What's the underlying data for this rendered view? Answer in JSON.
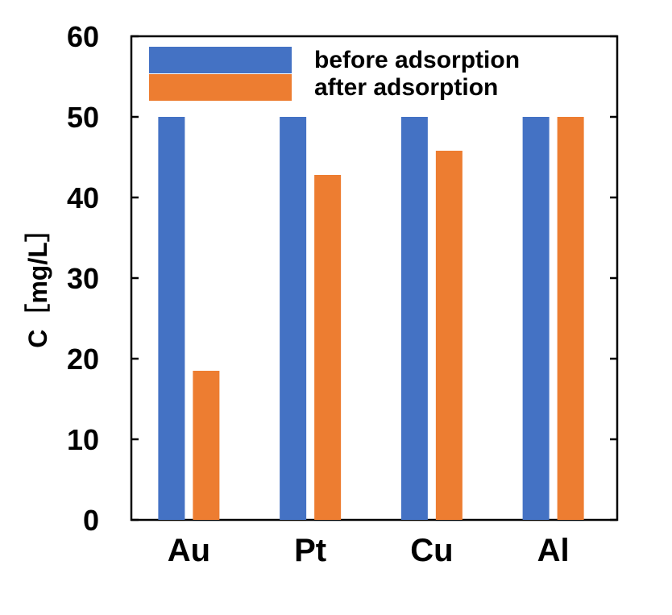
{
  "chart_data": {
    "type": "bar",
    "categories": [
      "Au",
      "Pt",
      "Cu",
      "Al"
    ],
    "series": [
      {
        "name": "before adsorption",
        "color": "#4472C4",
        "values": [
          50,
          50,
          50,
          50
        ]
      },
      {
        "name": "after adsorption",
        "color": "#ED7D31",
        "values": [
          18.5,
          42.8,
          45.8,
          50
        ]
      }
    ],
    "ylabel": "C［mg/L］",
    "ylim": [
      0,
      60
    ],
    "yticks": [
      0,
      10,
      20,
      30,
      40,
      50,
      60
    ],
    "grid": false,
    "legend_position": "top"
  }
}
